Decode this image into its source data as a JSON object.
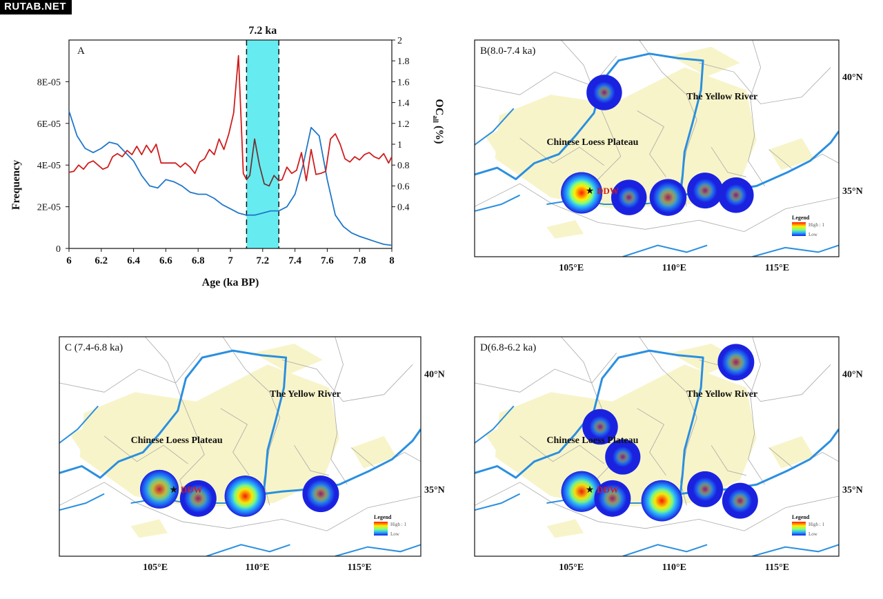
{
  "watermark": "RUTAB.NET",
  "colors": {
    "frequency": "#1f77c9",
    "oc": "#d01c1c",
    "highlight": "#66ecf0",
    "river": "#2a8fe0",
    "loess": "#f7f4c9",
    "border": "#a8a8a8"
  },
  "chart_data": [
    {
      "type": "line",
      "panel_label": "A",
      "title": "7.2 ka",
      "xlabel": "Age (ka BP)",
      "ylabel": "Frequency",
      "y2label_main": "OC",
      "y2label_sub": "all",
      "y2label_unit": " (%)",
      "xlim": [
        6,
        8
      ],
      "ylim": [
        0,
        0.0001
      ],
      "y2lim": [
        0,
        2
      ],
      "x_ticks": [
        "6",
        "6.2",
        "6.4",
        "6.6",
        "6.8",
        "7",
        "7.2",
        "7.4",
        "7.6",
        "7.8",
        "8"
      ],
      "y_ticks": [
        "0",
        "2E-05",
        "4E-05",
        "6E-05",
        "8E-05"
      ],
      "y2_ticks": [
        "0.4",
        "0.6",
        "0.8",
        "1",
        "1.2",
        "1.4",
        "1.6",
        "1.8",
        "2"
      ],
      "highlight_band": [
        7.1,
        7.3
      ],
      "series": [
        {
          "name": "Frequency",
          "axis": "left",
          "x": [
            6.0,
            6.05,
            6.1,
            6.15,
            6.2,
            6.25,
            6.3,
            6.35,
            6.4,
            6.45,
            6.5,
            6.55,
            6.6,
            6.65,
            6.7,
            6.75,
            6.8,
            6.85,
            6.9,
            6.95,
            7.0,
            7.05,
            7.1,
            7.15,
            7.2,
            7.25,
            7.3,
            7.35,
            7.4,
            7.45,
            7.5,
            7.55,
            7.6,
            7.65,
            7.7,
            7.75,
            7.8,
            7.85,
            7.9,
            7.95,
            8.0
          ],
          "y": [
            6.6e-05,
            5.4e-05,
            4.8e-05,
            4.6e-05,
            4.8e-05,
            5.1e-05,
            5e-05,
            4.6e-05,
            4.2e-05,
            3.5e-05,
            3e-05,
            2.9e-05,
            3.3e-05,
            3.2e-05,
            3e-05,
            2.7e-05,
            2.6e-05,
            2.6e-05,
            2.4e-05,
            2.1e-05,
            1.9e-05,
            1.7e-05,
            1.6e-05,
            1.6e-05,
            1.7e-05,
            1.8e-05,
            1.8e-05,
            2e-05,
            2.6e-05,
            4e-05,
            5.8e-05,
            5.4e-05,
            3.3e-05,
            1.6e-05,
            1.05e-05,
            7.5e-06,
            5.8e-06,
            4.5e-06,
            3.2e-06,
            2e-06,
            1.5e-06
          ]
        },
        {
          "name": "OCall",
          "axis": "right",
          "x": [
            6.0,
            6.03,
            6.06,
            6.09,
            6.12,
            6.15,
            6.18,
            6.21,
            6.24,
            6.27,
            6.3,
            6.33,
            6.36,
            6.39,
            6.42,
            6.45,
            6.48,
            6.51,
            6.54,
            6.57,
            6.6,
            6.63,
            6.66,
            6.69,
            6.72,
            6.75,
            6.78,
            6.81,
            6.84,
            6.87,
            6.9,
            6.93,
            6.96,
            6.99,
            7.02,
            7.05,
            7.08,
            7.1,
            7.12,
            7.15,
            7.18,
            7.21,
            7.24,
            7.27,
            7.3,
            7.32,
            7.35,
            7.38,
            7.41,
            7.44,
            7.47,
            7.5,
            7.53,
            7.56,
            7.59,
            7.62,
            7.65,
            7.68,
            7.71,
            7.74,
            7.77,
            7.8,
            7.83,
            7.86,
            7.89,
            7.92,
            7.95,
            7.98,
            8.0
          ],
          "y": [
            0.73,
            0.74,
            0.8,
            0.76,
            0.82,
            0.84,
            0.8,
            0.76,
            0.78,
            0.88,
            0.91,
            0.88,
            0.94,
            0.9,
            0.98,
            0.9,
            0.99,
            0.92,
            1.0,
            0.82,
            0.82,
            0.82,
            0.82,
            0.78,
            0.82,
            0.78,
            0.72,
            0.83,
            0.86,
            0.95,
            0.9,
            1.05,
            0.95,
            1.1,
            1.3,
            1.85,
            0.72,
            0.66,
            0.7,
            1.05,
            0.8,
            0.62,
            0.6,
            0.7,
            0.65,
            0.66,
            0.78,
            0.72,
            0.75,
            0.92,
            0.65,
            0.95,
            0.71,
            0.72,
            0.74,
            1.05,
            1.1,
            1.0,
            0.86,
            0.83,
            0.88,
            0.85,
            0.9,
            0.92,
            0.88,
            0.86,
            0.91,
            0.82,
            0.88
          ]
        }
      ]
    },
    {
      "type": "heatmap",
      "panel_label": "B(8.0-7.4 ka)",
      "region_labels": [
        "The Yellow River",
        "Chinese Loess Plateau"
      ],
      "site_label": "DDW",
      "x_ticks": [
        "105°E",
        "110°E",
        "115°E"
      ],
      "y_ticks": [
        "40°N",
        "35°N"
      ],
      "legend_title": "Legend",
      "legend_high": "High : 1",
      "legend_low": "Low",
      "hotspots": [
        {
          "lon": 106.6,
          "lat": 39.3,
          "intensity": 0.15
        },
        {
          "lon": 105.5,
          "lat": 34.9,
          "intensity": 1.0
        },
        {
          "lon": 107.8,
          "lat": 34.7,
          "intensity": 0.15
        },
        {
          "lon": 109.7,
          "lat": 34.7,
          "intensity": 0.35
        },
        {
          "lon": 111.5,
          "lat": 35.0,
          "intensity": 0.2
        },
        {
          "lon": 113.0,
          "lat": 34.8,
          "intensity": 0.15
        }
      ]
    },
    {
      "type": "heatmap",
      "panel_label": "C (7.4-6.8 ka)",
      "region_labels": [
        "The Yellow River",
        "Chinese Loess Plateau"
      ],
      "site_label": "DDW",
      "x_ticks": [
        "105°E",
        "110°E",
        "115°E"
      ],
      "y_ticks": [
        "40°N",
        "35°N"
      ],
      "legend_title": "Legend",
      "legend_high": "High : 1",
      "legend_low": "Low",
      "hotspots": [
        {
          "lon": 105.2,
          "lat": 35.0,
          "intensity": 0.6
        },
        {
          "lon": 107.1,
          "lat": 34.6,
          "intensity": 0.3
        },
        {
          "lon": 109.4,
          "lat": 34.7,
          "intensity": 0.95
        },
        {
          "lon": 113.1,
          "lat": 34.8,
          "intensity": 0.3
        }
      ]
    },
    {
      "type": "heatmap",
      "panel_label": "D(6.8-6.2 ka)",
      "region_labels": [
        "The Yellow River",
        "Chinese Loess Plateau"
      ],
      "site_label": "DDW",
      "x_ticks": [
        "105°E",
        "110°E",
        "115°E"
      ],
      "y_ticks": [
        "40°N",
        "35°N"
      ],
      "legend_title": "Legend",
      "legend_high": "High : 1",
      "legend_low": "Low",
      "hotspots": [
        {
          "lon": 113.0,
          "lat": 40.5,
          "intensity": 0.3
        },
        {
          "lon": 106.4,
          "lat": 37.7,
          "intensity": 0.15
        },
        {
          "lon": 107.5,
          "lat": 36.4,
          "intensity": 0.12
        },
        {
          "lon": 105.5,
          "lat": 34.9,
          "intensity": 0.9
        },
        {
          "lon": 107.0,
          "lat": 34.6,
          "intensity": 0.3
        },
        {
          "lon": 109.4,
          "lat": 34.5,
          "intensity": 0.95
        },
        {
          "lon": 111.5,
          "lat": 35.0,
          "intensity": 0.2
        },
        {
          "lon": 113.2,
          "lat": 34.5,
          "intensity": 0.2
        }
      ]
    }
  ]
}
